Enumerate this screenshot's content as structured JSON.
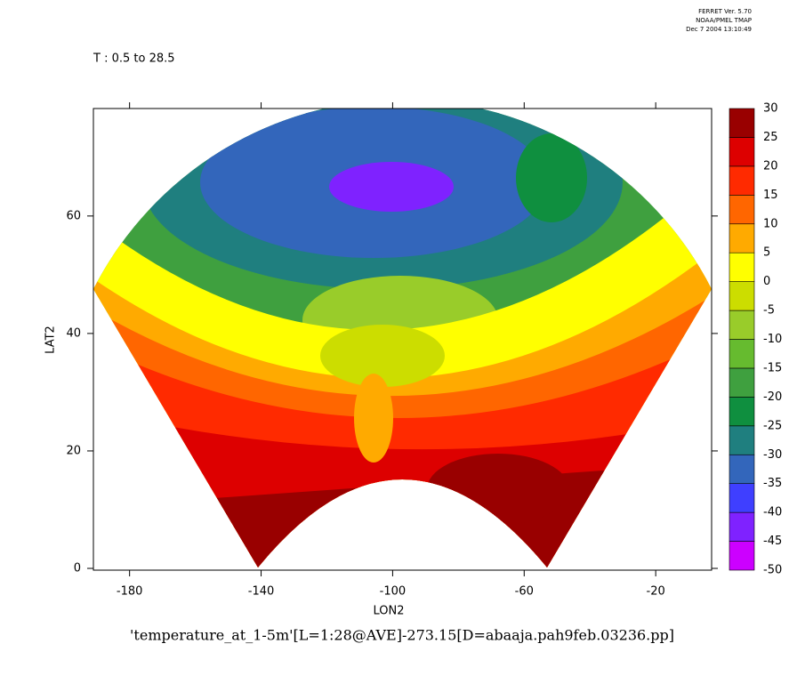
{
  "chart_data": {
    "type": "contour",
    "title": "T : 0.5 to 28.5",
    "annotations": [
      "FERRET Ver. 5.70",
      "NOAA/PMEL TMAP",
      "Dec  7 2004 13:10:49"
    ],
    "xlabel": "LON2",
    "ylabel": "LAT2",
    "caption": "'temperature_at_1-5m'[L=1:28@AVE]-273.15[D=abaaja.pah9feb.03236.pp]",
    "xlim": [
      -191,
      -3
    ],
    "xticks": [
      -180,
      -140,
      -100,
      -60,
      -20
    ],
    "ylim": [
      -0.3,
      78.3
    ],
    "yticks": [
      0,
      20,
      40,
      60
    ],
    "levels": [
      -50,
      -45,
      -40,
      -35,
      -30,
      -25,
      -20,
      -15,
      -10,
      -5,
      0,
      5,
      10,
      15,
      20,
      25,
      30
    ],
    "colors": [
      "#cc00ff",
      "#7f22ff",
      "#3f3fff",
      "#3366bb",
      "#1f7f7f",
      "#0f8f3f",
      "#3fa03f",
      "#66bb2f",
      "#99cc2a",
      "#ccdd00",
      "#ffff00",
      "#ffaa00",
      "#ff6600",
      "#ff2a00",
      "#dd0000",
      "#990000"
    ]
  }
}
